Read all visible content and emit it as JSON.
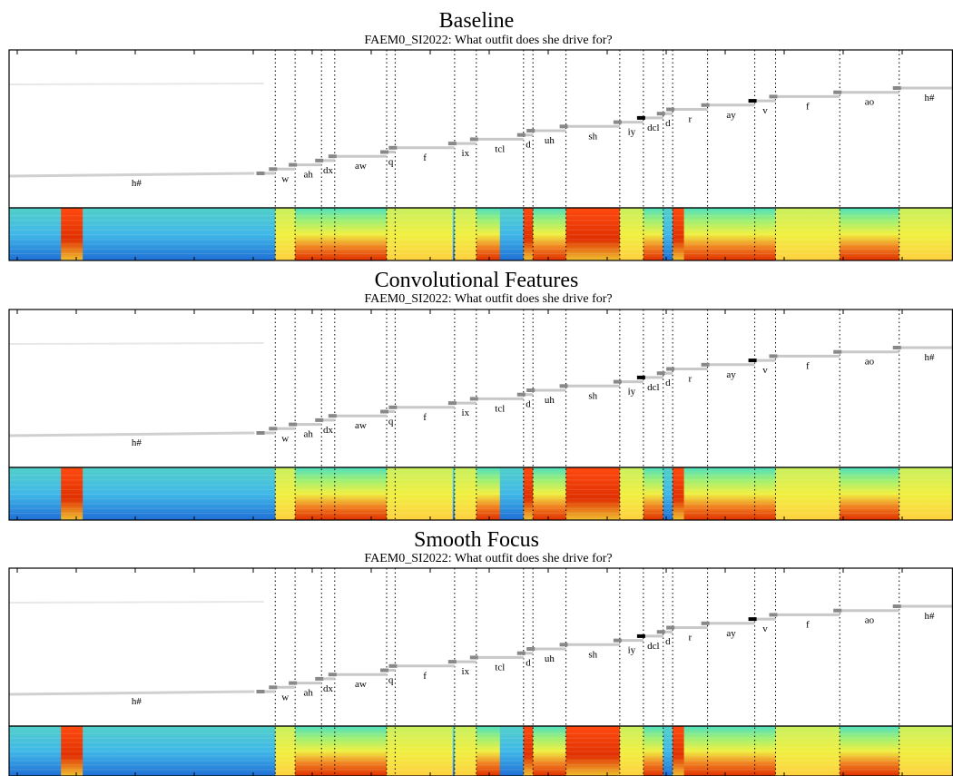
{
  "chart_data": [
    {
      "type": "heatmap",
      "title": "Baseline",
      "subtitle": "FAEM0_SI2022: What outfit does she drive for?",
      "phones": [
        "h#",
        "w",
        "ah",
        "dx",
        "aw",
        "q",
        "f",
        "ix",
        "tcl",
        "d",
        "uh",
        "sh",
        "iy",
        "dcl",
        "d",
        "r",
        "ay",
        "v",
        "f",
        "ao",
        "h#"
      ],
      "boundaries": [
        0.282,
        0.303,
        0.331,
        0.345,
        0.4,
        0.409,
        0.472,
        0.495,
        0.545,
        0.555,
        0.59,
        0.647,
        0.672,
        0.693,
        0.703,
        0.74,
        0.79,
        0.812,
        0.88,
        0.943
      ],
      "spectrogram_variant": 0
    },
    {
      "type": "heatmap",
      "title": "Convolutional Features",
      "subtitle": "FAEM0_SI2022: What outfit does she drive for?",
      "phones": [
        "h#",
        "w",
        "ah",
        "dx",
        "aw",
        "q",
        "f",
        "ix",
        "tcl",
        "d",
        "uh",
        "sh",
        "iy",
        "dcl",
        "d",
        "r",
        "ay",
        "v",
        "f",
        "ao",
        "h#"
      ],
      "boundaries": [
        0.282,
        0.303,
        0.331,
        0.345,
        0.4,
        0.409,
        0.472,
        0.495,
        0.545,
        0.555,
        0.59,
        0.647,
        0.672,
        0.693,
        0.703,
        0.74,
        0.79,
        0.812,
        0.88,
        0.943
      ],
      "spectrogram_variant": 1
    },
    {
      "type": "heatmap",
      "title": "Smooth Focus",
      "subtitle": "FAEM0_SI2022: What outfit does she drive for?",
      "phones": [
        "h#",
        "w",
        "ah",
        "dx",
        "aw",
        "q",
        "f",
        "ix",
        "tcl",
        "d",
        "uh",
        "sh",
        "iy",
        "dcl",
        "d",
        "r",
        "ay",
        "v",
        "f",
        "ao",
        "h#"
      ],
      "boundaries": [
        0.282,
        0.303,
        0.331,
        0.345,
        0.4,
        0.409,
        0.472,
        0.495,
        0.545,
        0.555,
        0.59,
        0.647,
        0.672,
        0.693,
        0.703,
        0.74,
        0.79,
        0.812,
        0.88,
        0.943
      ],
      "spectrogram_variant": 2
    }
  ],
  "colors": {
    "frame": "#000000",
    "alignment": "#000000",
    "spec_low": "#1f6fd6",
    "spec_mid": "#4fe0c0",
    "spec_high_mid": "#f0f040",
    "spec_high": "#e03000"
  }
}
